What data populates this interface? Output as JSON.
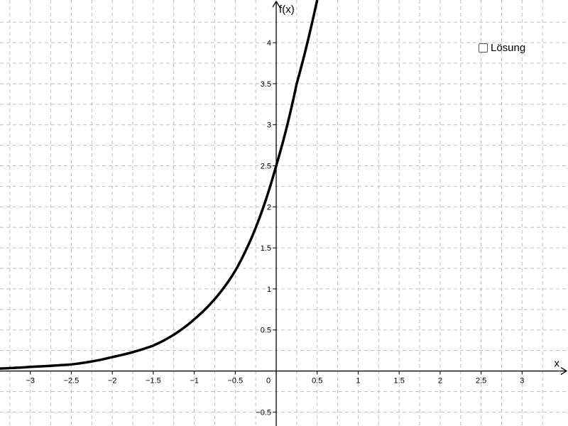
{
  "chart_data": {
    "type": "line",
    "xlabel": "x",
    "ylabel": "f(x)",
    "xlim": [
      -3.37,
      3.56
    ],
    "ylim": [
      -0.67,
      4.52
    ],
    "x_ticks": [
      -3,
      -2.5,
      -2,
      -1.5,
      -1,
      -0.5,
      0,
      0.5,
      1,
      1.5,
      2,
      2.5,
      3
    ],
    "y_ticks": [
      -0.5,
      0.5,
      1,
      1.5,
      2,
      2.5,
      3,
      3.5,
      4
    ],
    "x_tick_labels": [
      "−3",
      "−2.5",
      "−2",
      "−1.5",
      "−1",
      "−0.5",
      "0",
      "0.5",
      "1",
      "1.5",
      "2",
      "2.5",
      "3"
    ],
    "y_tick_labels": [
      "−0.5",
      "0.5",
      "1",
      "1.5",
      "2",
      "2.5",
      "3",
      "3.5",
      "4"
    ],
    "grid": true,
    "series": [
      {
        "color": "#000000",
        "x": [
          -3.37,
          -3.0,
          -2.5,
          -2.0,
          -1.5,
          -1.0,
          -0.5,
          0.0,
          0.25,
          0.5
        ],
        "y": [
          0.03,
          0.05,
          0.08,
          0.17,
          0.31,
          0.63,
          1.22,
          2.5,
          3.5,
          4.52
        ]
      }
    ]
  },
  "checkbox": {
    "label": "Lösung",
    "checked": false
  }
}
